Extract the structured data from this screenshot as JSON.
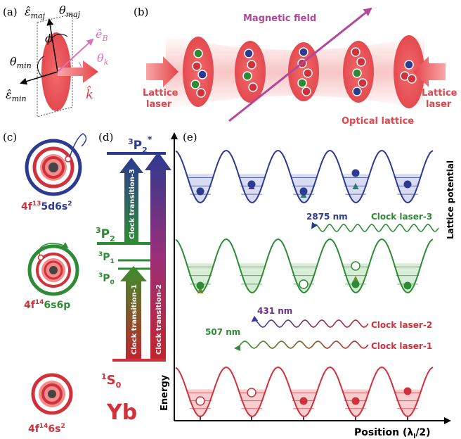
{
  "panels": {
    "a": "(a)",
    "b": "(b)",
    "c": "(c)",
    "d": "(d)",
    "e": "(e)"
  },
  "panel_a": {
    "eps_maj": "ε̂",
    "eps_maj_sub": "maj",
    "theta_maj": "θ",
    "theta_maj_sub": "maj",
    "phi": "ϕ",
    "theta_min": "θ",
    "theta_min_sub": "min",
    "eps_min": "ε̂",
    "eps_min_sub": "min",
    "e_b": "ê",
    "e_b_sub": "B",
    "theta_k": "θ",
    "theta_k_sub": "k",
    "k_hat": "k̂"
  },
  "panel_b": {
    "magnetic_field": "Magnetic field",
    "lattice_laser_left_1": "Lattice",
    "lattice_laser_left_2": "laser",
    "lattice_laser_right_1": "Lattice",
    "lattice_laser_right_2": "laser",
    "optical_lattice": "Optical lattice"
  },
  "panel_c": {
    "config_top_a": "4f",
    "config_top_a_sup": "13",
    "config_top_b": "5d6s",
    "config_top_b_sup": "2",
    "config_mid_a": "4f",
    "config_mid_a_sup": "14",
    "config_mid_b": "6s6p",
    "config_bot_a": "4f",
    "config_bot_a_sup": "14",
    "config_bot_b": "6s",
    "config_bot_b_sup": "2"
  },
  "panel_d": {
    "p2star_sup": "3",
    "p2star_main": "P",
    "p2star_sub": "2",
    "p2star_star": "*",
    "p2_sup": "3",
    "p2_main": "P",
    "p2_sub": "2",
    "p1_sup": "3",
    "p1_main": "P",
    "p1_sub": "1",
    "p0_sup": "3",
    "p0_main": "P",
    "p0_sub": "0",
    "s0_sup": "1",
    "s0_main": "S",
    "s0_sub": "0",
    "element": "Yb",
    "energy_axis": "Energy",
    "clock_transition_1": "Clock transition-1",
    "clock_transition_2": "Clock transition-2",
    "clock_transition_3": "Clock transition-3"
  },
  "panel_e": {
    "lattice_potential": "Lattice potential",
    "position_axis": "Position (λ",
    "position_axis_sub": "l",
    "position_axis_end": "/2)",
    "wavelength_2875": "2875 nm",
    "wavelength_431": "431 nm",
    "wavelength_507": "507 nm",
    "clock_laser_3": "Clock laser-3",
    "clock_laser_2": "Clock laser-2",
    "clock_laser_1": "Clock laser-1"
  },
  "colors": {
    "red": "#d0313a",
    "green": "#2e8b35",
    "blue": "#2c3a8f",
    "magenta": "#b4469c",
    "pink": "#f58b8b",
    "darkred": "#b0232c"
  }
}
